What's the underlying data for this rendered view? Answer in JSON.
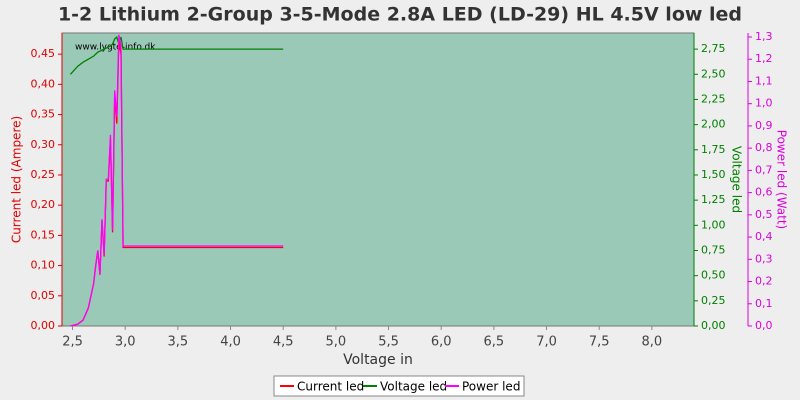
{
  "chart_data": {
    "type": "line",
    "title": "1-2 Lithium 2-Group 3-5-Mode 2.8A LED (LD-29) HL 4.5V low led",
    "watermark": "www.lygte-info.dk",
    "xlabel": "Voltage in",
    "ylabel": "Current led (Ampere)",
    "y2label": "Voltage led",
    "y3label": "Power led (Watt)",
    "background": "#9bc9b8",
    "grid": false,
    "legend": "bottom",
    "x": [
      2.48,
      2.55,
      2.6,
      2.65,
      2.7,
      2.72,
      2.74,
      2.76,
      2.78,
      2.8,
      2.82,
      2.84,
      2.86,
      2.88,
      2.9,
      2.92,
      2.94,
      2.96,
      2.98,
      4.5
    ],
    "series": [
      {
        "name": "Current led",
        "color": "#ff0000",
        "axis": "y",
        "values": [
          0,
          0.003,
          0.01,
          0.03,
          0.07,
          0.1,
          0.125,
          0.085,
          0.175,
          0.115,
          0.24,
          0.24,
          0.31,
          0.155,
          0.38,
          0.335,
          0.47,
          0.45,
          0.13,
          0.13
        ]
      },
      {
        "name": "Voltage led",
        "color": "#008000",
        "axis": "y2",
        "values": [
          2.5,
          2.58,
          2.62,
          2.65,
          2.68,
          2.7,
          2.72,
          2.73,
          2.74,
          2.75,
          2.76,
          2.77,
          2.78,
          2.8,
          2.85,
          2.87,
          2.8,
          2.87,
          2.75,
          2.75
        ]
      },
      {
        "name": "Power led",
        "color": "#ff00ff",
        "axis": "y3",
        "values": [
          0,
          0.008,
          0.026,
          0.08,
          0.19,
          0.27,
          0.34,
          0.23,
          0.48,
          0.32,
          0.66,
          0.66,
          0.86,
          0.43,
          1.06,
          0.94,
          1.31,
          1.26,
          0.36,
          0.36
        ]
      }
    ],
    "xlim": [
      2.4,
      8.4
    ],
    "xticks": [
      {
        "value": 2.5,
        "label": "2,5"
      },
      {
        "value": 3,
        "label": "3,0"
      },
      {
        "value": 3.5,
        "label": "3,5"
      },
      {
        "value": 4,
        "label": "4,0"
      },
      {
        "value": 4.5,
        "label": "4,5"
      },
      {
        "value": 5,
        "label": "5,0"
      },
      {
        "value": 5.5,
        "label": "5,5"
      },
      {
        "value": 6,
        "label": "6,0"
      },
      {
        "value": 6.5,
        "label": "6,5"
      },
      {
        "value": 7,
        "label": "7,0"
      },
      {
        "value": 7.5,
        "label": "7,5"
      },
      {
        "value": 8,
        "label": "8,0"
      }
    ],
    "ylim": [
      0,
      0.485
    ],
    "yticks": [
      {
        "value": 0,
        "label": "0,00"
      },
      {
        "value": 0.05,
        "label": "0,05"
      },
      {
        "value": 0.1,
        "label": "0,10"
      },
      {
        "value": 0.15,
        "label": "0,15"
      },
      {
        "value": 0.2,
        "label": "0,20"
      },
      {
        "value": 0.25,
        "label": "0,25"
      },
      {
        "value": 0.3,
        "label": "0,30"
      },
      {
        "value": 0.35,
        "label": "0,35"
      },
      {
        "value": 0.4,
        "label": "0,40"
      },
      {
        "value": 0.45,
        "label": "0,45"
      }
    ],
    "y2lim": [
      0,
      2.91
    ],
    "y2ticks": [
      {
        "value": 0,
        "label": "0,00"
      },
      {
        "value": 0.25,
        "label": "0,25"
      },
      {
        "value": 0.5,
        "label": "0,50"
      },
      {
        "value": 0.75,
        "label": "0,75"
      },
      {
        "value": 1,
        "label": "1,00"
      },
      {
        "value": 1.25,
        "label": "1,25"
      },
      {
        "value": 1.5,
        "label": "1,50"
      },
      {
        "value": 1.75,
        "label": "1,75"
      },
      {
        "value": 2,
        "label": "2,00"
      },
      {
        "value": 2.25,
        "label": "2,25"
      },
      {
        "value": 2.5,
        "label": "2,50"
      },
      {
        "value": 2.75,
        "label": "2,75"
      }
    ],
    "y3lim": [
      0,
      1.318
    ],
    "y3ticks": [
      {
        "value": 0,
        "label": "0,0"
      },
      {
        "value": 0.1,
        "label": "0,1"
      },
      {
        "value": 0.2,
        "label": "0,2"
      },
      {
        "value": 0.3,
        "label": "0,3"
      },
      {
        "value": 0.4,
        "label": "0,4"
      },
      {
        "value": 0.5,
        "label": "0,5"
      },
      {
        "value": 0.6,
        "label": "0,6"
      },
      {
        "value": 0.7,
        "label": "0,7"
      },
      {
        "value": 0.8,
        "label": "0,8"
      },
      {
        "value": 0.9,
        "label": "0,9"
      },
      {
        "value": 1,
        "label": "1,0"
      },
      {
        "value": 1.1,
        "label": "1,1"
      },
      {
        "value": 1.2,
        "label": "1,2"
      },
      {
        "value": 1.3,
        "label": "1,3"
      }
    ]
  }
}
